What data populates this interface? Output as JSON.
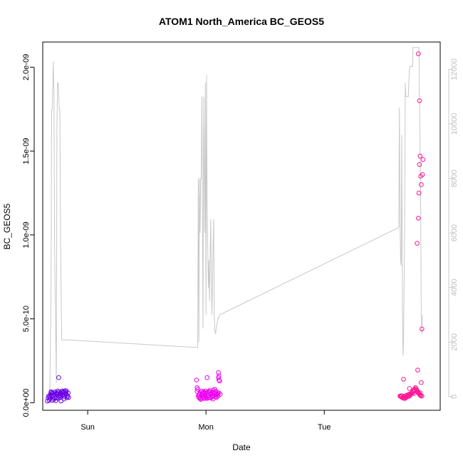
{
  "chart_data": {
    "type": "scatter",
    "title": "ATOM1 North_America BC_GEOS5",
    "xlabel": "Date",
    "ylabel": "BC_GEOS5",
    "x_ticks": [
      {
        "label": "Sun",
        "value": 1.0
      },
      {
        "label": "Mon",
        "value": 2.0
      },
      {
        "label": "Tue",
        "value": 3.0
      }
    ],
    "x_range": [
      0.62,
      3.98
    ],
    "ylim": [
      -4.5e-11,
      2.15e-09
    ],
    "y_ticks": [
      {
        "label": "0.0e+00",
        "value": 0
      },
      {
        "label": "5.0e-10",
        "value": 5e-10
      },
      {
        "label": "1.0e-09",
        "value": 1e-09
      },
      {
        "label": "1.5e-09",
        "value": 1.5e-09
      },
      {
        "label": "2.0e-09",
        "value": 2e-09
      }
    ],
    "y2_range": [
      -500,
      13000
    ],
    "y2_ticks": [
      {
        "label": "0",
        "value": 0
      },
      {
        "label": "2000",
        "value": 2000
      },
      {
        "label": "4000",
        "value": 4000
      },
      {
        "label": "6000",
        "value": 6000
      },
      {
        "label": "8000",
        "value": 8000
      },
      {
        "label": "10000",
        "value": 10000
      },
      {
        "label": "12000",
        "value": 12000
      }
    ],
    "grid": false,
    "altitude_line": {
      "color": "#c8c8c8",
      "x": [
        0.68,
        0.69,
        0.695,
        0.7,
        0.71,
        0.715,
        0.72,
        0.735,
        0.74,
        0.745,
        0.75,
        0.76,
        0.765,
        0.77,
        0.78,
        0.785,
        0.79,
        0.8,
        0.81,
        0.815,
        0.82,
        0.83,
        0.835,
        1.93,
        1.935,
        1.94,
        1.945,
        1.95,
        1.955,
        1.96,
        1.965,
        1.975,
        1.98,
        1.99,
        1.995,
        2.0,
        2.005,
        2.01,
        2.02,
        2.025,
        2.03,
        2.04,
        2.045,
        2.05,
        2.055,
        2.06,
        2.065,
        2.07,
        2.075,
        2.08,
        2.09,
        2.1,
        2.105,
        2.11,
        2.115,
        3.63,
        3.635,
        3.64,
        3.645,
        3.65,
        3.655,
        3.66,
        3.665,
        3.67,
        3.675,
        3.68,
        3.685,
        3.69,
        3.7,
        3.71,
        3.715,
        3.72,
        3.725,
        3.73,
        3.74,
        3.745,
        3.75,
        3.76,
        3.77,
        3.78,
        3.79,
        3.8,
        3.81,
        3.815,
        3.82,
        3.825,
        3.83
      ],
      "y": [
        200,
        4000,
        10500,
        10500,
        12300,
        11000,
        5500,
        500,
        9800,
        11500,
        11500,
        10500,
        10500,
        6000,
        2080,
        2080,
        2080,
        2080,
        2080,
        2080,
        2080,
        2080,
        2080,
        1800,
        8000,
        2000,
        8000,
        6000,
        8000,
        8000,
        11000,
        2500,
        11000,
        6000,
        11500,
        3000,
        11800,
        7000,
        4000,
        5000,
        3500,
        6500,
        4500,
        3000,
        4000,
        5500,
        6500,
        3000,
        2400,
        2300,
        2600,
        2800,
        2900,
        2900,
        3000,
        6200,
        10600,
        6500,
        5000,
        4800,
        9600,
        4000,
        1500,
        2000,
        4000,
        7000,
        11500,
        11000,
        11000,
        11000,
        11600,
        12000,
        12100,
        12100,
        12100,
        12100,
        12800,
        12800,
        12800,
        12800,
        12800,
        12800,
        9000,
        7000,
        3000,
        2300,
        3000
      ]
    },
    "series": [
      {
        "color": "#6a00e6",
        "x": [
          0.66,
          0.665,
          0.67,
          0.675,
          0.68,
          0.685,
          0.69,
          0.695,
          0.7,
          0.705,
          0.71,
          0.715,
          0.72,
          0.725,
          0.73,
          0.735,
          0.74,
          0.745,
          0.75,
          0.755,
          0.76,
          0.765,
          0.77,
          0.775,
          0.78,
          0.785,
          0.79,
          0.795,
          0.8,
          0.805,
          0.81,
          0.815,
          0.82,
          0.825,
          0.83,
          0.835,
          0.84,
          0.68,
          0.7,
          0.72,
          0.74,
          0.76,
          0.78,
          0.8,
          0.82,
          0.755,
          0.69,
          0.71,
          0.73,
          0.75,
          0.77,
          0.79,
          0.81
        ],
        "y": [
          1e-11,
          3e-11,
          4e-11,
          1.5e-11,
          2.5e-11,
          5e-11,
          6e-11,
          4e-11,
          5.5e-11,
          6e-11,
          4.5e-11,
          2e-11,
          5e-11,
          6.5e-11,
          5.5e-11,
          3e-11,
          6e-11,
          7e-11,
          5e-11,
          4e-11,
          6.5e-11,
          3e-11,
          5.5e-11,
          1e-11,
          6e-11,
          7e-11,
          4.5e-11,
          5e-11,
          6.5e-11,
          3.5e-11,
          5.5e-11,
          6.2e-11,
          7e-11,
          3e-11,
          4e-11,
          5.8e-11,
          3.2e-11,
          3.5e-11,
          1.5e-11,
          2.8e-11,
          4.8e-11,
          3.8e-11,
          6.8e-11,
          2.2e-11,
          5.2e-11,
          1.5e-10,
          6.6e-11,
          4.2e-11,
          1.2e-11,
          2.6e-11,
          4.4e-11,
          6.1e-11,
          7.2e-11
        ]
      },
      {
        "color": "#ee00ee",
        "x": [
          1.92,
          1.925,
          1.93,
          1.935,
          1.94,
          1.945,
          1.95,
          1.955,
          1.96,
          1.965,
          1.97,
          1.975,
          1.98,
          1.985,
          1.99,
          1.995,
          2.0,
          2.005,
          2.01,
          2.015,
          2.02,
          2.025,
          2.03,
          2.035,
          2.04,
          2.045,
          2.05,
          2.055,
          2.06,
          2.065,
          2.07,
          2.075,
          2.08,
          2.085,
          2.09,
          2.095,
          2.1,
          2.105,
          2.11,
          2.115,
          2.12,
          1.925,
          1.94,
          1.96,
          1.98,
          2.0,
          2.02,
          2.04,
          2.06,
          2.08,
          2.1,
          1.95,
          1.97,
          1.99,
          2.01,
          2.03,
          2.05,
          2.07,
          2.09,
          2.11,
          2.105,
          2.11
        ],
        "y": [
          1.35e-10,
          9e-11,
          8e-11,
          4e-11,
          3e-11,
          5e-11,
          6e-11,
          2e-11,
          4.5e-11,
          7e-11,
          3e-11,
          5e-11,
          6e-11,
          2.5e-11,
          5.5e-11,
          7e-11,
          3.5e-11,
          6e-11,
          1.5e-10,
          4e-11,
          6.5e-11,
          3e-11,
          5.8e-11,
          7e-11,
          2.8e-11,
          5e-11,
          6.2e-11,
          3.8e-11,
          7.5e-11,
          4.2e-11,
          5.5e-11,
          8e-11,
          4.6e-11,
          6.8e-11,
          3.2e-11,
          5.2e-11,
          4e-11,
          1.8e-10,
          1.6e-10,
          1.3e-10,
          5e-11,
          6.8e-11,
          4.8e-11,
          2.4e-11,
          6.6e-11,
          2.8e-11,
          4.2e-11,
          5.2e-11,
          2.2e-11,
          3.6e-11,
          6e-11,
          3e-11,
          5.6e-11,
          4.4e-11,
          2.6e-11,
          7.2e-11,
          3.4e-11,
          6.4e-11,
          4.8e-11,
          5.8e-11,
          1.5e-10,
          1.35e-10
        ]
      },
      {
        "color": "#ff1493",
        "x": [
          3.64,
          3.645,
          3.65,
          3.655,
          3.66,
          3.665,
          3.67,
          3.675,
          3.68,
          3.685,
          3.69,
          3.695,
          3.7,
          3.705,
          3.71,
          3.715,
          3.72,
          3.725,
          3.73,
          3.735,
          3.74,
          3.745,
          3.75,
          3.755,
          3.76,
          3.765,
          3.77,
          3.775,
          3.78,
          3.785,
          3.79,
          3.795,
          3.8,
          3.805,
          3.81,
          3.815,
          3.82,
          3.825,
          3.79,
          3.785,
          3.795,
          3.8,
          3.805,
          3.81,
          3.815,
          3.82,
          3.825,
          3.83,
          3.835,
          3.67,
          3.72,
          3.76,
          3.795,
          3.805,
          3.81
        ],
        "y": [
          4e-11,
          3.8e-11,
          3.5e-11,
          4.2e-11,
          3e-11,
          2.8e-11,
          3.2e-11,
          4e-11,
          2.5e-11,
          3.4e-11,
          3e-11,
          4.5e-11,
          3.6e-11,
          4.2e-11,
          4.8e-11,
          3.8e-11,
          5.2e-11,
          4.4e-11,
          5e-11,
          5.5e-11,
          6e-11,
          5.8e-11,
          7e-11,
          6.5e-11,
          8e-11,
          7.5e-11,
          9e-11,
          8.5e-11,
          7.8e-11,
          7.2e-11,
          6.5e-11,
          6e-11,
          5.5e-11,
          5e-11,
          4.5e-11,
          4.2e-11,
          1.2e-10,
          4e-11,
          1.95e-10,
          9.5e-10,
          1.1e-09,
          1.25e-09,
          1.42e-09,
          1.47e-09,
          1.35e-09,
          1.3e-09,
          4.4e-10,
          1.36e-09,
          1.45e-09,
          1.4e-10,
          8.5e-11,
          5.5e-11,
          2.08e-09,
          1.8e-09,
          6e-11
        ]
      }
    ]
  }
}
